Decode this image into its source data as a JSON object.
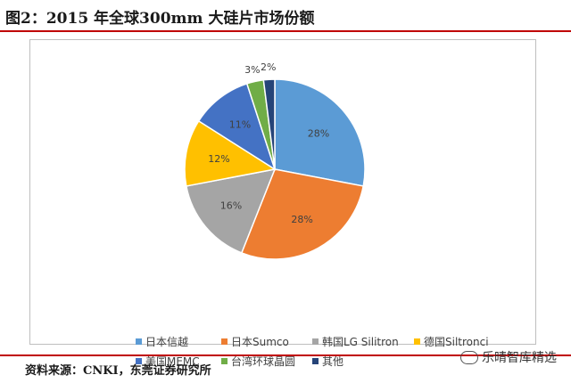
{
  "figure": {
    "title": "图2：2015 年全球300mm 大硅片市场份额",
    "source": "资料来源：CNKI，东莞证券研究所",
    "watermark": "乐晴智库精选"
  },
  "chart_data": {
    "type": "pie",
    "title": "",
    "categories": [
      "日本信越",
      "日本Sumco",
      "韩国LG Silitron",
      "德国Siltronci",
      "美国MEMC",
      "台湾环球晶圆",
      "其他"
    ],
    "values": [
      28,
      28,
      16,
      12,
      11,
      3,
      2
    ],
    "labels": [
      "28%",
      "28%",
      "16%",
      "12%",
      "11%",
      "3%",
      "2%"
    ],
    "colors": [
      "#5b9bd5",
      "#ed7d31",
      "#a5a5a5",
      "#ffc000",
      "#4472c4",
      "#70ad47",
      "#264478"
    ],
    "legend_position": "bottom"
  }
}
